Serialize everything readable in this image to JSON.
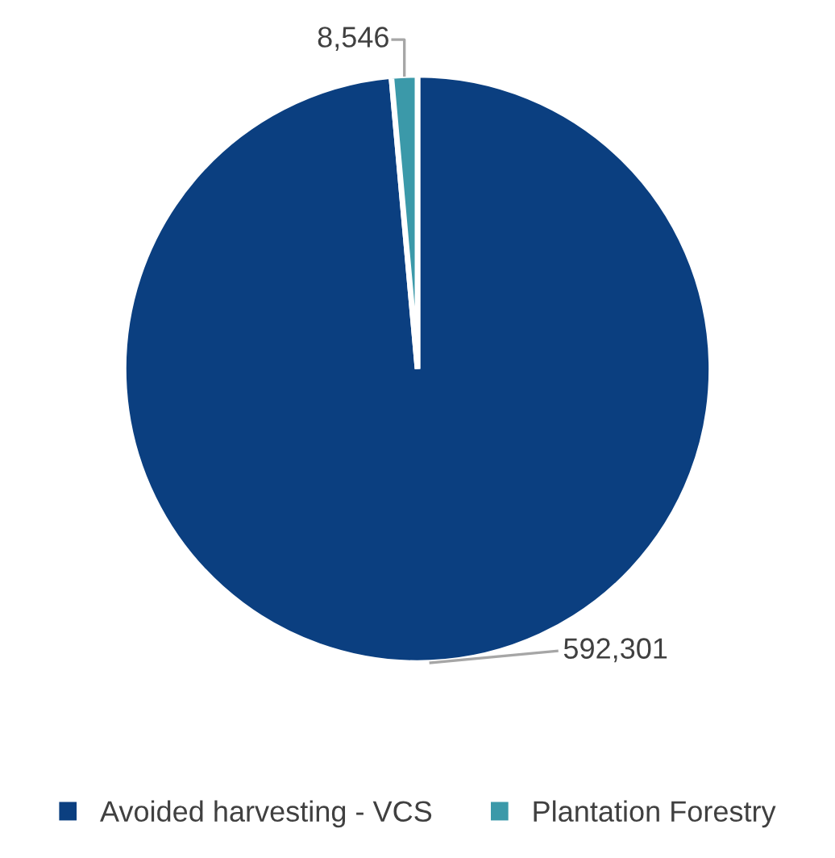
{
  "chart_data": {
    "type": "pie",
    "categories": [
      "Avoided harvesting - VCS",
      "Plantation Forestry"
    ],
    "values": [
      592301,
      8546
    ],
    "colors": [
      "#0b3f80",
      "#3b99a9"
    ],
    "value_labels": [
      "592,301",
      "8,546"
    ],
    "legend": "bottom"
  }
}
